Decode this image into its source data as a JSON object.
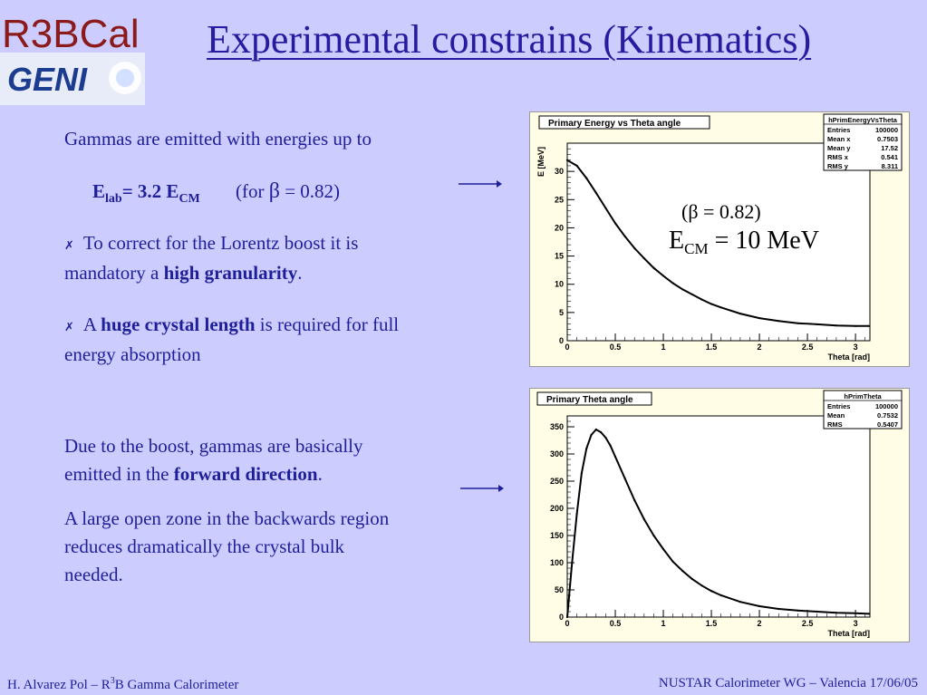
{
  "logos": {
    "r3b_text": "R3BCal",
    "geni_text": "GENI"
  },
  "title": "Experimental constrains (Kinematics)",
  "left": {
    "line1": "Gammas are emitted with energies up to",
    "formula": {
      "e": "E",
      "lab": "lab",
      "eq": "= 3.2 E",
      "cm": "CM",
      "for_open": "(for ",
      "beta": "β",
      "for_rest": " = 0.82)"
    },
    "bullet_glyph": "✗",
    "bullet1": {
      "pre": "To correct for the Lorentz boost it is",
      "line2_pre": "mandatory a ",
      "bold": "high granularity",
      "post": "."
    },
    "bullet2": {
      "pre": "A ",
      "bold": "huge crystal length",
      "post": " is required for full",
      "line2": "energy absorption"
    },
    "para1": {
      "line1": "Due to the boost, gammas are basically",
      "line2_pre": "emitted in the ",
      "bold": "forward direction",
      "post": "."
    },
    "para2": {
      "line1": "A large open zone in the backwards region",
      "line2": "reduces dramatically the crystal bulk",
      "line3": "needed."
    }
  },
  "annotation": {
    "beta_line": "(β = 0.82)",
    "ecm_e": "E",
    "ecm_sub": "CM",
    "ecm_rest": " = 10 MeV"
  },
  "footer": {
    "left_pre": "H. Alvarez Pol – R",
    "left_sup": "3",
    "left_post": "B Gamma Calorimeter",
    "right": "NUSTAR Calorimeter WG – Valencia 17/06/05"
  },
  "colors": {
    "background": "#ccccff",
    "text": "#1f1f99",
    "title": "#2a1aa0",
    "panel": "#fffde6"
  },
  "chart_data": [
    {
      "type": "line",
      "title": "Primary Energy vs Theta angle",
      "xlabel": "Theta [rad]",
      "ylabel": "E [MeV]",
      "xlim": [
        0,
        3.15
      ],
      "ylim": [
        0,
        35
      ],
      "xticks": [
        0,
        0.5,
        1,
        1.5,
        2,
        2.5,
        3
      ],
      "xtick_labels": [
        "0",
        "0.5",
        "1",
        "1.5",
        "2",
        "2.5",
        "3"
      ],
      "yticks": [
        0,
        5,
        10,
        15,
        20,
        25,
        30
      ],
      "ytick_labels": [
        "0",
        "5",
        "10",
        "15",
        "20",
        "25",
        "30"
      ],
      "x": [
        0.0,
        0.1,
        0.2,
        0.3,
        0.4,
        0.5,
        0.6,
        0.7,
        0.8,
        0.9,
        1.0,
        1.1,
        1.2,
        1.3,
        1.4,
        1.5,
        1.6,
        1.8,
        2.0,
        2.2,
        2.4,
        2.6,
        2.8,
        3.0,
        3.14
      ],
      "values": [
        32.0,
        31.0,
        28.8,
        26.2,
        23.5,
        20.8,
        18.5,
        16.4,
        14.6,
        12.9,
        11.5,
        10.2,
        9.1,
        8.2,
        7.3,
        6.5,
        5.9,
        4.8,
        4.0,
        3.5,
        3.1,
        2.9,
        2.7,
        2.6,
        2.6
      ],
      "stats": {
        "name": "hPrimEnergyVsTheta",
        "rows": [
          [
            "Entries",
            "100000"
          ],
          [
            "Mean x",
            "0.7503"
          ],
          [
            "Mean y",
            "17.52"
          ],
          [
            "RMS x",
            "0.541"
          ],
          [
            "RMS y",
            "8.311"
          ]
        ]
      }
    },
    {
      "type": "line",
      "title": "Primary Theta angle",
      "xlabel": "Theta [rad]",
      "ylabel": "",
      "xlim": [
        0,
        3.15
      ],
      "ylim": [
        0,
        370
      ],
      "xticks": [
        0,
        0.5,
        1,
        1.5,
        2,
        2.5,
        3
      ],
      "xtick_labels": [
        "0",
        "0.5",
        "1",
        "1.5",
        "2",
        "2.5",
        "3"
      ],
      "yticks": [
        0,
        50,
        100,
        150,
        200,
        250,
        300,
        350
      ],
      "ytick_labels": [
        "0",
        "50",
        "100",
        "150",
        "200",
        "250",
        "300",
        "350"
      ],
      "x": [
        0.0,
        0.05,
        0.1,
        0.15,
        0.2,
        0.25,
        0.3,
        0.35,
        0.4,
        0.45,
        0.5,
        0.6,
        0.7,
        0.8,
        0.9,
        1.0,
        1.1,
        1.2,
        1.3,
        1.4,
        1.5,
        1.6,
        1.8,
        2.0,
        2.2,
        2.4,
        2.6,
        2.8,
        3.0,
        3.14
      ],
      "values": [
        0,
        100,
        190,
        265,
        310,
        335,
        345,
        340,
        330,
        315,
        295,
        255,
        215,
        180,
        150,
        125,
        102,
        85,
        70,
        58,
        48,
        40,
        28,
        20,
        15,
        12,
        10,
        8,
        7,
        6
      ],
      "stats": {
        "name": "hPrimTheta",
        "rows": [
          [
            "Entries",
            "100000"
          ],
          [
            "Mean",
            "0.7532"
          ],
          [
            "RMS",
            "0.5407"
          ]
        ]
      }
    }
  ]
}
